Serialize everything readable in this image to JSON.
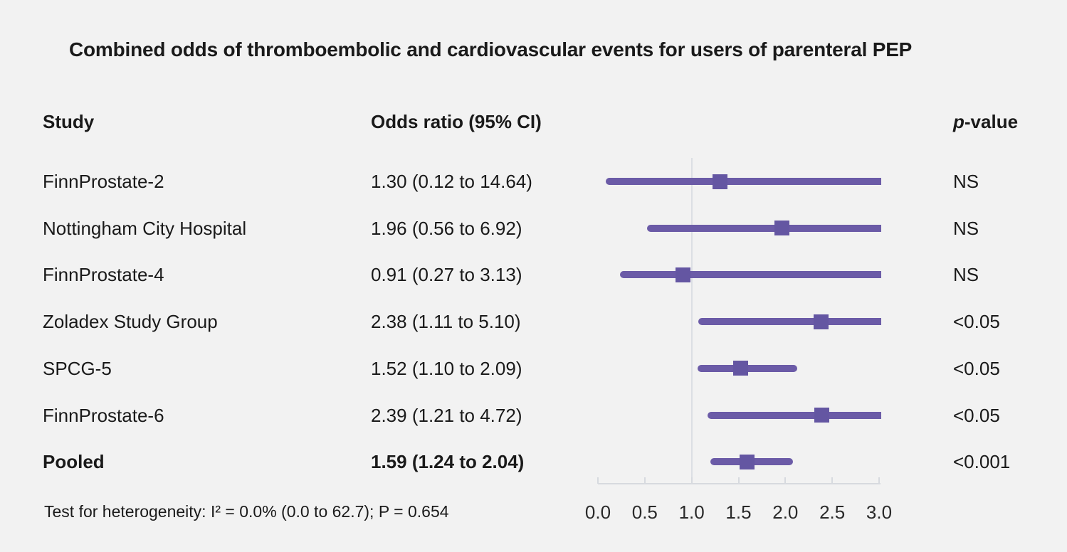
{
  "title": "Combined odds of thromboembolic and cardiovascular events for users of parenteral PEP",
  "columns": {
    "study": "Study",
    "odds_ratio": "Odds ratio (95% CI)",
    "p_value_italic": "p",
    "p_value_rest": "-value"
  },
  "footer": "Test for heterogeneity: I² = 0.0% (0.0 to 62.7); P = 0.654",
  "colors": {
    "background": "#f2f2f2",
    "ci_line": "#6b5ba7",
    "marker": "#6456a2",
    "reference_line": "#dcdfe4",
    "axis": "#d7dadf",
    "text": "#1a1a1a"
  },
  "chart_data": {
    "type": "forest",
    "title": "Combined odds of thromboembolic and cardiovascular events for users of parenteral PEP",
    "x_axis": {
      "xlim": [
        0,
        3
      ],
      "ticks": [
        0.0,
        0.5,
        1.0,
        1.5,
        2.0,
        2.5,
        3.0
      ],
      "tick_labels": [
        "0.0",
        "0.5",
        "1.0",
        "1.5",
        "2.0",
        "2.5",
        "3.0"
      ],
      "reference_line": 1.0
    },
    "studies": [
      {
        "study": "FinnProstate-2",
        "or": 1.3,
        "ci_low": 0.12,
        "ci_high": 14.64,
        "or_label": "1.30 (0.12 to 14.64)",
        "p_value": "NS",
        "pooled": false
      },
      {
        "study": "Nottingham City Hospital",
        "or": 1.96,
        "ci_low": 0.56,
        "ci_high": 6.92,
        "or_label": "1.96 (0.56 to 6.92)",
        "p_value": "NS",
        "pooled": false
      },
      {
        "study": "FinnProstate-4",
        "or": 0.91,
        "ci_low": 0.27,
        "ci_high": 3.13,
        "or_label": "0.91 (0.27 to 3.13)",
        "p_value": "NS",
        "pooled": false
      },
      {
        "study": "Zoladex Study Group",
        "or": 2.38,
        "ci_low": 1.11,
        "ci_high": 5.1,
        "or_label": "2.38 (1.11 to 5.10)",
        "p_value": "<0.05",
        "pooled": false
      },
      {
        "study": "SPCG-5",
        "or": 1.52,
        "ci_low": 1.1,
        "ci_high": 2.09,
        "or_label": "1.52 (1.10 to 2.09)",
        "p_value": "<0.05",
        "pooled": false
      },
      {
        "study": "FinnProstate-6",
        "or": 2.39,
        "ci_low": 1.21,
        "ci_high": 4.72,
        "or_label": "2.39 (1.21 to 4.72)",
        "p_value": "<0.05",
        "pooled": false
      },
      {
        "study": "Pooled",
        "or": 1.59,
        "ci_low": 1.24,
        "ci_high": 2.04,
        "or_label": "1.59 (1.24 to 2.04)",
        "p_value": "<0.001",
        "pooled": true
      }
    ],
    "heterogeneity": "Test for heterogeneity: I² = 0.0% (0.0 to 62.7); P = 0.654"
  }
}
